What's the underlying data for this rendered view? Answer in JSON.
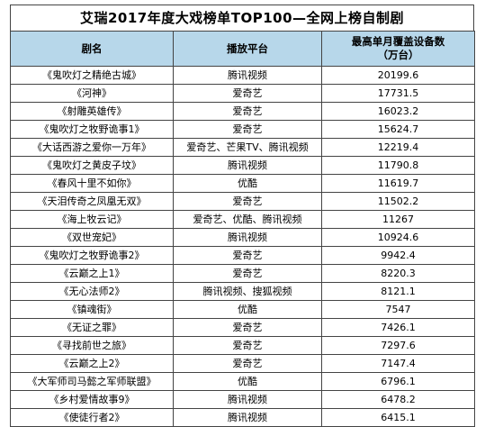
{
  "title": "艾瑞2017年度大戏榜单TOP100—全网上榜自制剧",
  "headers": {
    "name": "剧名",
    "platform": "播放平台",
    "value_line1": "最高单月覆盖设备数",
    "value_line2": "（万台）"
  },
  "rows": [
    {
      "name": "《鬼吹灯之精绝古城》",
      "platform": "腾讯视频",
      "value": "20199.6"
    },
    {
      "name": "《河神》",
      "platform": "爱奇艺",
      "value": "17731.5"
    },
    {
      "name": "《射雕英雄传》",
      "platform": "爱奇艺",
      "value": "16023.2"
    },
    {
      "name": "《鬼吹灯之牧野诡事1》",
      "platform": "爱奇艺",
      "value": "15624.7"
    },
    {
      "name": "《大话西游之爱你一万年》",
      "platform": "爱奇艺、芒果TV、腾讯视频",
      "value": "12219.4"
    },
    {
      "name": "《鬼吹灯之黄皮子坟》",
      "platform": "腾讯视频",
      "value": "11790.8"
    },
    {
      "name": "《春风十里不如你》",
      "platform": "优酷",
      "value": "11619.7"
    },
    {
      "name": "《天泪传奇之凤凰无双》",
      "platform": "爱奇艺",
      "value": "11502.2"
    },
    {
      "name": "《海上牧云记》",
      "platform": "爱奇艺、优酷、腾讯视频",
      "value": "11267"
    },
    {
      "name": "《双世宠妃》",
      "platform": "腾讯视频",
      "value": "10924.6"
    },
    {
      "name": "《鬼吹灯之牧野诡事2》",
      "platform": "爱奇艺",
      "value": "9942.4"
    },
    {
      "name": "《云巅之上1》",
      "platform": "爱奇艺",
      "value": "8220.3"
    },
    {
      "name": "《无心法师2》",
      "platform": "腾讯视频、搜狐视频",
      "value": "8121.1"
    },
    {
      "name": "《镇魂街》",
      "platform": "优酷",
      "value": "7547"
    },
    {
      "name": "《无证之罪》",
      "platform": "爱奇艺",
      "value": "7426.1"
    },
    {
      "name": "《寻找前世之旅》",
      "platform": "爱奇艺",
      "value": "7297.6"
    },
    {
      "name": "《云巅之上2》",
      "platform": "爱奇艺",
      "value": "7147.4"
    },
    {
      "name": "《大军师司马懿之军师联盟》",
      "platform": "优酷",
      "value": "6796.1"
    },
    {
      "name": "《乡村爱情故事9》",
      "platform": "腾讯视频",
      "value": "6478.2"
    },
    {
      "name": "《使徒行者2》",
      "platform": "腾讯视频",
      "value": "6415.1"
    }
  ]
}
